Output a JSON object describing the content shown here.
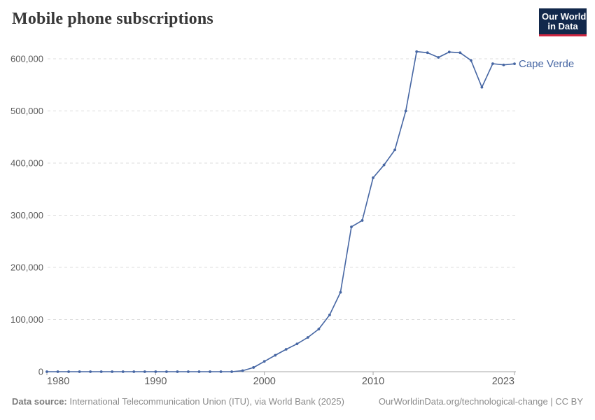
{
  "header": {
    "title": "Mobile phone subscriptions",
    "logo": {
      "line1": "Our World",
      "line2": "in Data"
    }
  },
  "footer": {
    "source_label": "Data source:",
    "source_text": " International Telecommunication Union (ITU), via World Bank (2025)",
    "right_text": "OurWorldinData.org/technological-change | CC BY"
  },
  "colors": {
    "line": "#4666a3",
    "grid": "#dcdcdc",
    "axis": "#a7a7a7",
    "tick_text": "#5b5b5b",
    "title_text": "#383838",
    "footer_text": "#8a8a8a",
    "logo_bg": "#12284b",
    "logo_red": "#cf2540"
  },
  "chart_data": {
    "type": "line",
    "title": "Mobile phone subscriptions",
    "xlabel": "",
    "ylabel": "",
    "xlim": [
      1980,
      2023
    ],
    "ylim": [
      0,
      600000
    ],
    "grid": "horizontal-dashed",
    "legend_position": "line-end-label",
    "xticks": [
      1980,
      1990,
      2000,
      2010,
      2023
    ],
    "yticks": [
      0,
      100000,
      200000,
      300000,
      400000,
      500000,
      600000
    ],
    "series": [
      {
        "name": "Cape Verde",
        "color": "#4666a3",
        "x": [
          1980,
          1981,
          1982,
          1983,
          1984,
          1985,
          1986,
          1987,
          1988,
          1989,
          1990,
          1991,
          1992,
          1993,
          1994,
          1995,
          1996,
          1997,
          1998,
          1999,
          2000,
          2001,
          2002,
          2003,
          2004,
          2005,
          2006,
          2007,
          2008,
          2009,
          2010,
          2011,
          2012,
          2013,
          2014,
          2015,
          2016,
          2017,
          2018,
          2019,
          2020,
          2021,
          2022,
          2023
        ],
        "values": [
          0,
          0,
          0,
          0,
          0,
          0,
          0,
          0,
          0,
          0,
          0,
          0,
          0,
          0,
          0,
          0,
          0,
          0,
          1927,
          8119,
          19729,
          31507,
          42949,
          53342,
          65780,
          81721,
          108858,
          152212,
          277667,
          290000,
          371871,
          396423,
          425308,
          500000,
          613800,
          611700,
          602700,
          613000,
          611700,
          596900,
          545400,
          590600,
          588300,
          590400
        ]
      }
    ]
  }
}
